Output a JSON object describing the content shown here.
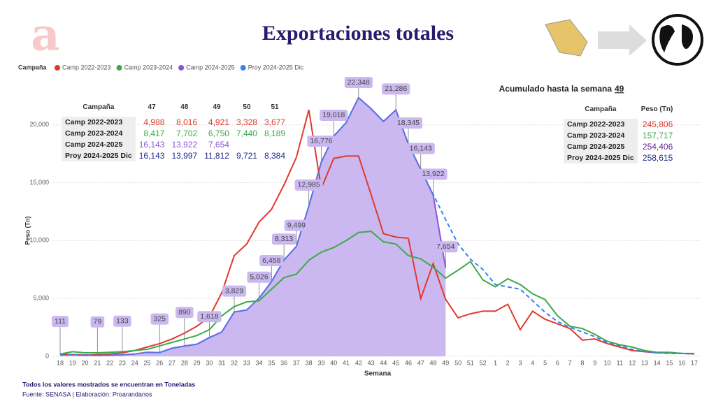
{
  "chart_data": {
    "type": "line",
    "title": "Exportaciones totales",
    "legend_title": "Campaña",
    "x_label": "Semana",
    "y_label": "Peso (Tn)",
    "categories": [
      "18",
      "19",
      "20",
      "21",
      "22",
      "23",
      "24",
      "25",
      "26",
      "27",
      "28",
      "29",
      "30",
      "31",
      "32",
      "33",
      "34",
      "35",
      "36",
      "37",
      "38",
      "39",
      "40",
      "41",
      "42",
      "43",
      "44",
      "45",
      "46",
      "47",
      "48",
      "49",
      "50",
      "51",
      "52",
      "1",
      "2",
      "3",
      "4",
      "5",
      "6",
      "7",
      "8",
      "9",
      "10",
      "11",
      "12",
      "13",
      "14",
      "15",
      "16",
      "17"
    ],
    "ylim": [
      0,
      23000
    ],
    "yticks": [
      0,
      {
        "value": 5000,
        "label": "5,000"
      },
      {
        "value": 10000,
        "label": "10,000"
      },
      {
        "value": 15000,
        "label": "15,000"
      },
      {
        "value": 20000,
        "label": "20,000"
      }
    ],
    "grid": true,
    "series": [
      {
        "name": "Camp 2022-2023",
        "color": "#e0392e",
        "style": "solid",
        "values": [
          200,
          150,
          100,
          150,
          200,
          300,
          500,
          800,
          1100,
          1500,
          2000,
          2600,
          3400,
          5500,
          8700,
          9700,
          11600,
          12700,
          14800,
          17200,
          21300,
          14500,
          17100,
          17300,
          17300,
          14000,
          10600,
          10300,
          10200,
          4988,
          8016,
          4921,
          3328,
          3677,
          3900,
          3900,
          4500,
          2300,
          3900,
          3200,
          2800,
          2400,
          1400,
          1500,
          1100,
          800,
          500,
          400,
          300,
          300,
          250,
          200
        ]
      },
      {
        "name": "Camp 2023-2024",
        "color": "#3daa4a",
        "style": "solid",
        "values": [
          200,
          400,
          300,
          300,
          350,
          400,
          500,
          600,
          900,
          1200,
          1500,
          1800,
          2300,
          3500,
          4300,
          4700,
          4800,
          5800,
          6800,
          7100,
          8300,
          9000,
          9400,
          10000,
          10700,
          10800,
          9900,
          9700,
          8700,
          8417,
          7702,
          6750,
          7440,
          8189,
          6600,
          6000,
          6700,
          6200,
          5400,
          4900,
          3500,
          2600,
          2400,
          1900,
          1300,
          1000,
          800,
          500,
          350,
          350,
          250,
          250
        ]
      },
      {
        "name": "Camp 2024-2025",
        "color": "#8a55d8",
        "area_color": "#cbb8f0",
        "style": "area",
        "values": [
          111,
          150,
          120,
          79,
          100,
          133,
          200,
          350,
          325,
          700,
          890,
          1050,
          1618,
          2100,
          3829,
          4000,
          5026,
          6458,
          8313,
          9499,
          12985,
          16776,
          19018,
          20200,
          22348,
          21400,
          20300,
          21286,
          18345,
          16143,
          13922,
          7654,
          null,
          null,
          null,
          null,
          null,
          null,
          null,
          null,
          null,
          null,
          null,
          null,
          null,
          null,
          null,
          null,
          null,
          null,
          null,
          null
        ],
        "value_labels": [
          "111",
          null,
          null,
          "79",
          null,
          "133",
          null,
          null,
          "325",
          null,
          "890",
          null,
          "1,618",
          null,
          "3,829",
          null,
          "5,026",
          "6,458",
          "8,313",
          "9,499",
          "12,985",
          "16,776",
          "19,018",
          null,
          "22,348",
          null,
          null,
          "21,286",
          "18,345",
          "16,143",
          "13,922",
          "7,654",
          null,
          null,
          null,
          null,
          null,
          null,
          null,
          null,
          null,
          null,
          null,
          null,
          null,
          null,
          null,
          null,
          null,
          null,
          null,
          null
        ]
      },
      {
        "name": "Proy 2024-2025 Dic",
        "color": "#3b82f0",
        "style": "dashed",
        "values": [
          111,
          150,
          120,
          79,
          100,
          133,
          200,
          350,
          325,
          700,
          890,
          1050,
          1618,
          2100,
          3829,
          4000,
          5026,
          6458,
          8313,
          9499,
          12985,
          16776,
          19018,
          20200,
          22348,
          21400,
          20300,
          21286,
          18345,
          16143,
          13997,
          11812,
          9721,
          8384,
          7500,
          6200,
          6000,
          5800,
          4800,
          3800,
          3000,
          2500,
          2100,
          1700,
          1200,
          900,
          600,
          400,
          300,
          250,
          250,
          200
        ]
      }
    ]
  },
  "week_table": {
    "header": [
      "Campaña",
      "47",
      "48",
      "49",
      "50",
      "51"
    ],
    "row_colors": [
      "#e0392e",
      "#3daa4a",
      "#8a55d8",
      "#1f2a8c"
    ],
    "rows": [
      [
        "Camp 2022-2023",
        "4,988",
        "8,016",
        "4,921",
        "3,328",
        "3,677"
      ],
      [
        "Camp 2023-2024",
        "8,417",
        "7,702",
        "6,750",
        "7,440",
        "8,189"
      ],
      [
        "Camp 2024-2025",
        "16,143",
        "13,922",
        "7,654"
      ],
      [
        "Proy 2024-2025 Dic",
        "16,143",
        "13,997",
        "11,812",
        "9,721",
        "8,384"
      ]
    ]
  },
  "total_table": {
    "title": "Acumulado hasta la semana",
    "week": "49",
    "header": [
      "Campaña",
      "Peso (Tn)"
    ],
    "row_colors": [
      "#e0392e",
      "#3daa4a",
      "#6a2a9a",
      "#1f2a8c"
    ],
    "rows": [
      [
        "Camp 2022-2023",
        "245,806"
      ],
      [
        "Camp 2023-2024",
        "157,717"
      ],
      [
        "Camp 2024-2025",
        "254,406"
      ],
      [
        "Proy 2024-2025 Dic",
        "258,615"
      ]
    ]
  },
  "footer": {
    "note": "Todos los valores mostrados se encuentran en Toneladas",
    "source": "Fuente: SENASA | Elaboración: Proarandanos"
  }
}
